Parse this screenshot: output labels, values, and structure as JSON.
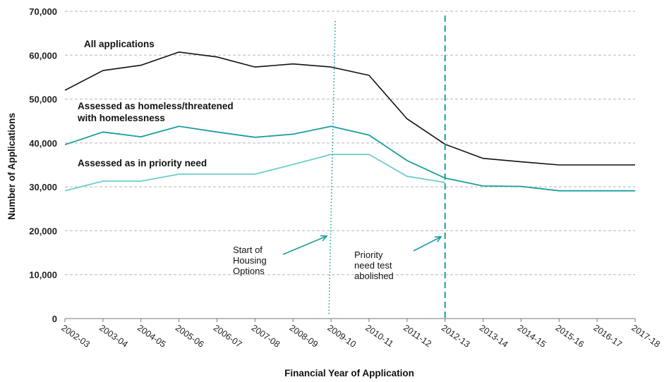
{
  "chart_data": {
    "type": "line",
    "xlabel": "Financial Year of Application",
    "ylabel": "Number of Applications",
    "ylim": [
      0,
      70000
    ],
    "yticks": [
      "0",
      "10,000",
      "20,000",
      "30,000",
      "40,000",
      "50,000",
      "60,000",
      "70,000"
    ],
    "categories": [
      "2002-03",
      "2003-04",
      "2004-05",
      "2005-06",
      "2006-07",
      "2007-08",
      "2008-09",
      "2009-10",
      "2010-11",
      "2011-12",
      "2012-13",
      "2013-14",
      "2014-15",
      "2015-16",
      "2016-17",
      "2017-18"
    ],
    "grid": "horizontal-dashed",
    "series": [
      {
        "name": "All applications",
        "color": "#111111",
        "values": [
          52000,
          56500,
          57700,
          60700,
          59600,
          57300,
          58000,
          57300,
          55400,
          45500,
          39700,
          36500,
          35700,
          35000,
          35000,
          35000
        ]
      },
      {
        "name": "Assessed as homeless/threatened with homelessness",
        "label_lines": [
          "Assessed as homeless/threatened",
          "with homelessness"
        ],
        "color": "#1a9e9c",
        "values": [
          39600,
          42500,
          41400,
          43800,
          42500,
          41300,
          42000,
          43800,
          41800,
          36000,
          32000,
          30200,
          30100,
          29100,
          29100,
          29100
        ]
      },
      {
        "name": "Assessed as in priority need",
        "color": "#6fcdcb",
        "values": [
          29100,
          31300,
          31300,
          32900,
          32900,
          32900,
          35100,
          37400,
          37400,
          32400,
          31000,
          null,
          null,
          null,
          null,
          null
        ]
      }
    ],
    "annotations": [
      {
        "text_lines": [
          "Start of",
          "Housing",
          "Options"
        ],
        "at_category": "2009-10",
        "line_style": "dotted",
        "color": "#1a9e9c"
      },
      {
        "text_lines": [
          "Priority",
          "need test",
          "abolished"
        ],
        "at_category": "2012-13",
        "line_style": "dashed",
        "color": "#1a9e9c"
      }
    ]
  }
}
